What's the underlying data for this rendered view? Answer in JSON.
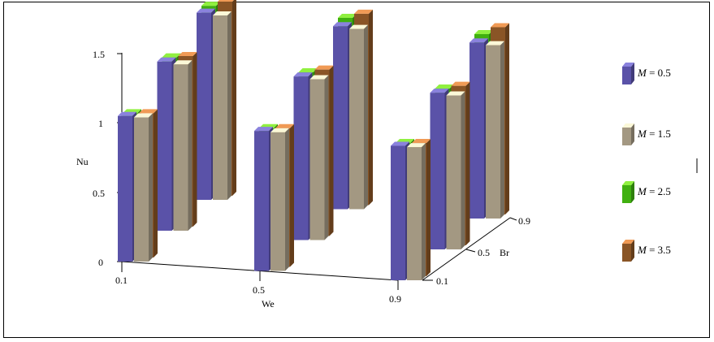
{
  "chart_data": {
    "type": "bar",
    "projection": "3d",
    "zlabel": "Nu",
    "xlabel": "We",
    "ylabel": "Br",
    "zlim": [
      0,
      1.5
    ],
    "z_ticks": [
      "0",
      "0.5",
      "1",
      "1.5"
    ],
    "we_ticks": [
      "0.1",
      "0.5",
      "0.9"
    ],
    "br_ticks": [
      "0.1",
      "0.5",
      "0.9"
    ],
    "we_values": [
      0.1,
      0.5,
      0.9
    ],
    "br_values": [
      0.1,
      0.5,
      0.9
    ],
    "series": [
      {
        "legend_var": "M",
        "legend_eq": " = 0.5",
        "color": "#5a52a8",
        "top": "#8a82dd",
        "values": [
          [
            1.05,
            1.22,
            1.35
          ],
          [
            1.01,
            1.18,
            1.32
          ],
          [
            0.97,
            1.13,
            1.27
          ]
        ]
      },
      {
        "legend_var": "M",
        "legend_eq": " = 1.5",
        "color": "#a39882",
        "top": "#fbf8d8",
        "values": [
          [
            1.04,
            1.2,
            1.33
          ],
          [
            1.0,
            1.16,
            1.3
          ],
          [
            0.96,
            1.11,
            1.25
          ]
        ]
      },
      {
        "legend_var": "M",
        "legend_eq": " = 2.5",
        "color": "#40b010",
        "top": "#90f040",
        "values": [
          [
            1.07,
            1.25,
            1.4
          ],
          [
            1.03,
            1.21,
            1.38
          ],
          [
            0.99,
            1.16,
            1.33
          ]
        ]
      },
      {
        "legend_var": "M",
        "legend_eq": " = 3.5",
        "color": "#8a5526",
        "top": "#f09a55",
        "values": [
          [
            1.07,
            1.26,
            1.43
          ],
          [
            1.03,
            1.23,
            1.41
          ],
          [
            0.99,
            1.18,
            1.38
          ]
        ]
      }
    ]
  }
}
